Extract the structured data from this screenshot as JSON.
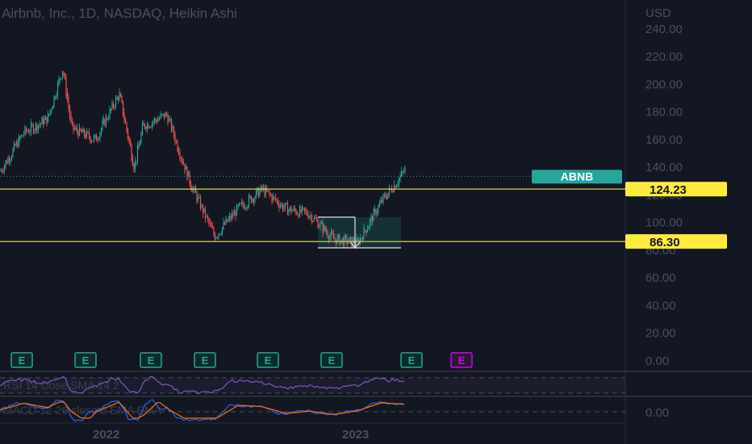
{
  "header": {
    "title": "Airbnb, Inc., 1D, NASDAQ, Heikin Ashi"
  },
  "price_axis": {
    "currency": "USD",
    "ticks": [
      "240.00",
      "220.00",
      "200.00",
      "180.00",
      "160.00",
      "140.00",
      "120.00",
      "100.00",
      "80.00",
      "60.00",
      "40.00",
      "20.00",
      "0.00"
    ],
    "oscillator_tick": "0.00"
  },
  "time_axis": {
    "labels": [
      "2022",
      "2023"
    ]
  },
  "markers": {
    "symbol": {
      "label": "ABNB",
      "price": 133.5
    },
    "levels": [
      {
        "label": "124.23",
        "price": 124.23
      },
      {
        "label": "86.30",
        "price": 86.3
      }
    ]
  },
  "earnings": {
    "label": "E",
    "count": 8
  },
  "indicators": {
    "rsi_legend": "RSI 14 close SMA 14 2",
    "macd_legend": "MACD 12 26 close 9 EMA EMA"
  },
  "colors": {
    "background": "#131722",
    "up": "#26a69a",
    "down": "#ef5350",
    "level_line": "#f5e55a",
    "level_label_bg": "#ffeb3b",
    "symbol_label_bg": "#26a69a",
    "earnings": "#26a69a",
    "earnings_upcoming": "#d500f9",
    "rsi": "#7e57c2",
    "macd": "#2962ff",
    "signal": "#ff6d00"
  },
  "chart_data": {
    "type": "candlestick",
    "title": "Airbnb, Inc., 1D, NASDAQ, Heikin Ashi",
    "ylabel": "USD",
    "ylim": [
      0,
      240
    ],
    "x_labels": [
      "2022",
      "2023"
    ],
    "horizontal_levels": [
      124.23,
      86.3
    ],
    "last_price": 133.5,
    "series": [
      {
        "name": "ABNB",
        "close_path": [
          [
            "2021-09",
            137
          ],
          [
            "2021-10",
            165
          ],
          [
            "2021-11",
            175
          ],
          [
            "2021-11-20",
            212
          ],
          [
            "2021-12",
            168
          ],
          [
            "2022-01",
            160
          ],
          [
            "2022-02",
            193
          ],
          [
            "2022-02-20",
            140
          ],
          [
            "2022-03",
            170
          ],
          [
            "2022-04",
            178
          ],
          [
            "2022-05",
            128
          ],
          [
            "2022-06",
            90
          ],
          [
            "2022-07",
            110
          ],
          [
            "2022-08",
            124
          ],
          [
            "2022-09",
            110
          ],
          [
            "2022-10",
            106
          ],
          [
            "2022-11",
            88
          ],
          [
            "2022-12",
            85
          ],
          [
            "2023-01",
            115
          ],
          [
            "2023-02",
            138
          ]
        ]
      }
    ],
    "grid": false
  }
}
